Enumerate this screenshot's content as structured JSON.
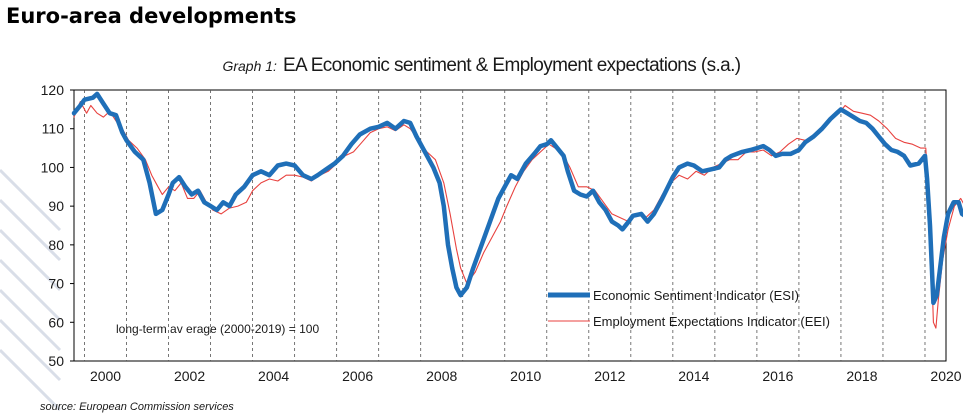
{
  "page": {
    "heading": "Euro-area developments"
  },
  "chart_data": {
    "type": "line",
    "title_prefix": "Graph 1:",
    "title": "EA Economic sentiment & Employment expectations (s.a.)",
    "ylim": [
      50,
      120
    ],
    "y_ticks": [
      50,
      60,
      70,
      80,
      90,
      100,
      110,
      120
    ],
    "x_ticks": [
      "2000",
      "2002",
      "2004",
      "2006",
      "2008",
      "2010",
      "2012",
      "2014",
      "2016",
      "2018",
      "2020"
    ],
    "xlim": [
      1999.75,
      2020.5
    ],
    "grid": "vertical dashed",
    "annotation": "long-term av erage (2000-2019) = 100",
    "source_label": "source:",
    "source_text": "European Commission services",
    "series": [
      {
        "name": "Economic Sentiment Indicator (ESI)",
        "color": "#1f6fb8",
        "style": "thick",
        "points": [
          [
            1999.75,
            114
          ],
          [
            1999.9,
            116
          ],
          [
            2000.0,
            117.5
          ],
          [
            2000.2,
            118
          ],
          [
            2000.3,
            119
          ],
          [
            2000.45,
            116.5
          ],
          [
            2000.6,
            114
          ],
          [
            2000.75,
            113.5
          ],
          [
            2000.9,
            109
          ],
          [
            2001.0,
            107
          ],
          [
            2001.2,
            104
          ],
          [
            2001.4,
            102
          ],
          [
            2001.55,
            96
          ],
          [
            2001.7,
            88
          ],
          [
            2001.85,
            89
          ],
          [
            2002.0,
            93
          ],
          [
            2002.1,
            96
          ],
          [
            2002.25,
            97.5
          ],
          [
            2002.4,
            95
          ],
          [
            2002.55,
            93
          ],
          [
            2002.7,
            94
          ],
          [
            2002.85,
            91
          ],
          [
            2003.0,
            90
          ],
          [
            2003.15,
            89
          ],
          [
            2003.3,
            91
          ],
          [
            2003.45,
            90
          ],
          [
            2003.6,
            93
          ],
          [
            2003.8,
            95
          ],
          [
            2004.0,
            98
          ],
          [
            2004.2,
            99
          ],
          [
            2004.4,
            98
          ],
          [
            2004.6,
            100.5
          ],
          [
            2004.8,
            101
          ],
          [
            2005.0,
            100.5
          ],
          [
            2005.2,
            98
          ],
          [
            2005.4,
            97
          ],
          [
            2005.55,
            98
          ],
          [
            2005.75,
            99.5
          ],
          [
            2005.95,
            101
          ],
          [
            2006.15,
            103
          ],
          [
            2006.35,
            106
          ],
          [
            2006.55,
            108.5
          ],
          [
            2006.8,
            110
          ],
          [
            2007.0,
            110.5
          ],
          [
            2007.2,
            111.5
          ],
          [
            2007.4,
            110
          ],
          [
            2007.6,
            112
          ],
          [
            2007.75,
            111.5
          ],
          [
            2007.9,
            108
          ],
          [
            2008.1,
            104
          ],
          [
            2008.3,
            100
          ],
          [
            2008.45,
            96
          ],
          [
            2008.55,
            90
          ],
          [
            2008.65,
            80
          ],
          [
            2008.75,
            74
          ],
          [
            2008.85,
            69
          ],
          [
            2008.95,
            67
          ],
          [
            2009.1,
            69
          ],
          [
            2009.25,
            74
          ],
          [
            2009.45,
            80
          ],
          [
            2009.65,
            86
          ],
          [
            2009.85,
            92
          ],
          [
            2010.0,
            95
          ],
          [
            2010.15,
            98
          ],
          [
            2010.3,
            97
          ],
          [
            2010.5,
            101
          ],
          [
            2010.7,
            103.5
          ],
          [
            2010.85,
            105.5
          ],
          [
            2011.0,
            106
          ],
          [
            2011.1,
            107
          ],
          [
            2011.25,
            105
          ],
          [
            2011.4,
            103
          ],
          [
            2011.5,
            99
          ],
          [
            2011.65,
            94
          ],
          [
            2011.8,
            93
          ],
          [
            2011.95,
            92.5
          ],
          [
            2012.1,
            94
          ],
          [
            2012.25,
            91
          ],
          [
            2012.4,
            89
          ],
          [
            2012.55,
            86
          ],
          [
            2012.7,
            85
          ],
          [
            2012.8,
            84
          ],
          [
            2012.95,
            86
          ],
          [
            2013.05,
            87.5
          ],
          [
            2013.25,
            88
          ],
          [
            2013.4,
            86
          ],
          [
            2013.55,
            88
          ],
          [
            2013.75,
            92
          ],
          [
            2014.0,
            97.5
          ],
          [
            2014.15,
            100
          ],
          [
            2014.35,
            101
          ],
          [
            2014.5,
            100.5
          ],
          [
            2014.7,
            99
          ],
          [
            2014.9,
            99.5
          ],
          [
            2015.1,
            100
          ],
          [
            2015.25,
            102
          ],
          [
            2015.4,
            103
          ],
          [
            2015.65,
            104
          ],
          [
            2015.85,
            104.5
          ],
          [
            2016.0,
            105
          ],
          [
            2016.15,
            105.5
          ],
          [
            2016.3,
            104.5
          ],
          [
            2016.45,
            103
          ],
          [
            2016.6,
            103.5
          ],
          [
            2016.8,
            103.5
          ],
          [
            2017.0,
            104.5
          ],
          [
            2017.15,
            106.5
          ],
          [
            2017.35,
            108
          ],
          [
            2017.55,
            110
          ],
          [
            2017.75,
            112.5
          ],
          [
            2017.9,
            114
          ],
          [
            2018.0,
            115
          ],
          [
            2018.15,
            114
          ],
          [
            2018.3,
            113
          ],
          [
            2018.45,
            112
          ],
          [
            2018.6,
            111.5
          ],
          [
            2018.75,
            110
          ],
          [
            2018.9,
            108
          ],
          [
            2019.05,
            106
          ],
          [
            2019.2,
            104.5
          ],
          [
            2019.35,
            104
          ],
          [
            2019.5,
            103
          ],
          [
            2019.65,
            100.5
          ],
          [
            2019.85,
            101
          ],
          [
            2020.0,
            103
          ],
          [
            2020.05,
            97
          ],
          [
            2020.12,
            85
          ],
          [
            2020.2,
            65
          ],
          [
            2020.28,
            67
          ],
          [
            2020.36,
            74
          ],
          [
            2020.45,
            82
          ],
          [
            2020.55,
            88
          ],
          [
            2020.68,
            91
          ],
          [
            2020.8,
            91
          ],
          [
            2020.88,
            88
          ],
          [
            2020.95,
            87.5
          ]
        ]
      },
      {
        "name": "Employment Expectations Indicator (EEI)",
        "color": "#e8423f",
        "style": "thin",
        "points": [
          [
            1999.75,
            113
          ],
          [
            1999.9,
            117
          ],
          [
            2000.05,
            114
          ],
          [
            2000.15,
            116
          ],
          [
            2000.3,
            114
          ],
          [
            2000.45,
            113
          ],
          [
            2000.6,
            114.5
          ],
          [
            2000.75,
            112
          ],
          [
            2000.9,
            110
          ],
          [
            2001.05,
            107
          ],
          [
            2001.25,
            105
          ],
          [
            2001.45,
            102
          ],
          [
            2001.6,
            98
          ],
          [
            2001.75,
            95
          ],
          [
            2001.85,
            93
          ],
          [
            2002.0,
            95
          ],
          [
            2002.15,
            94
          ],
          [
            2002.3,
            96
          ],
          [
            2002.45,
            92
          ],
          [
            2002.6,
            92
          ],
          [
            2002.75,
            94
          ],
          [
            2002.9,
            91
          ],
          [
            2003.05,
            89
          ],
          [
            2003.25,
            88
          ],
          [
            2003.45,
            89.5
          ],
          [
            2003.65,
            90
          ],
          [
            2003.85,
            91
          ],
          [
            2004.0,
            94
          ],
          [
            2004.2,
            96
          ],
          [
            2004.4,
            97
          ],
          [
            2004.6,
            96.5
          ],
          [
            2004.8,
            98
          ],
          [
            2005.0,
            98
          ],
          [
            2005.2,
            97.5
          ],
          [
            2005.4,
            96.5
          ],
          [
            2005.6,
            98
          ],
          [
            2005.8,
            99
          ],
          [
            2006.0,
            101
          ],
          [
            2006.2,
            103
          ],
          [
            2006.4,
            104
          ],
          [
            2006.6,
            106.5
          ],
          [
            2006.8,
            109
          ],
          [
            2007.0,
            110
          ],
          [
            2007.2,
            110.5
          ],
          [
            2007.4,
            109.5
          ],
          [
            2007.6,
            111
          ],
          [
            2007.75,
            110
          ],
          [
            2007.95,
            107
          ],
          [
            2008.15,
            104
          ],
          [
            2008.35,
            102
          ],
          [
            2008.55,
            96
          ],
          [
            2008.7,
            88
          ],
          [
            2008.85,
            79
          ],
          [
            2008.95,
            74
          ],
          [
            2009.1,
            70
          ],
          [
            2009.3,
            73
          ],
          [
            2009.5,
            78
          ],
          [
            2009.7,
            82
          ],
          [
            2009.9,
            86
          ],
          [
            2010.05,
            90
          ],
          [
            2010.25,
            95
          ],
          [
            2010.45,
            99
          ],
          [
            2010.65,
            102
          ],
          [
            2010.85,
            104
          ],
          [
            2011.05,
            106
          ],
          [
            2011.2,
            105
          ],
          [
            2011.4,
            103
          ],
          [
            2011.55,
            100
          ],
          [
            2011.75,
            95
          ],
          [
            2011.95,
            95
          ],
          [
            2012.15,
            94
          ],
          [
            2012.35,
            91
          ],
          [
            2012.55,
            88
          ],
          [
            2012.75,
            87
          ],
          [
            2012.95,
            86
          ],
          [
            2013.15,
            88
          ],
          [
            2013.35,
            87
          ],
          [
            2013.55,
            89
          ],
          [
            2013.75,
            93
          ],
          [
            2013.95,
            96
          ],
          [
            2014.15,
            98
          ],
          [
            2014.35,
            97
          ],
          [
            2014.55,
            99
          ],
          [
            2014.75,
            98
          ],
          [
            2014.95,
            100
          ],
          [
            2015.15,
            101
          ],
          [
            2015.35,
            102
          ],
          [
            2015.55,
            102
          ],
          [
            2015.75,
            104
          ],
          [
            2015.95,
            104
          ],
          [
            2016.15,
            104.5
          ],
          [
            2016.35,
            103
          ],
          [
            2016.55,
            104
          ],
          [
            2016.75,
            106
          ],
          [
            2016.95,
            107.5
          ],
          [
            2017.15,
            107
          ],
          [
            2017.35,
            108
          ],
          [
            2017.55,
            110
          ],
          [
            2017.75,
            112
          ],
          [
            2017.95,
            114
          ],
          [
            2018.1,
            116
          ],
          [
            2018.3,
            114.5
          ],
          [
            2018.5,
            114
          ],
          [
            2018.7,
            113.5
          ],
          [
            2018.9,
            112
          ],
          [
            2019.1,
            110
          ],
          [
            2019.3,
            107.5
          ],
          [
            2019.5,
            106.5
          ],
          [
            2019.7,
            106
          ],
          [
            2019.9,
            105
          ],
          [
            2020.02,
            105
          ],
          [
            2020.08,
            94
          ],
          [
            2020.14,
            80
          ],
          [
            2020.2,
            60
          ],
          [
            2020.26,
            58.5
          ],
          [
            2020.32,
            66
          ],
          [
            2020.42,
            76
          ],
          [
            2020.55,
            84
          ],
          [
            2020.7,
            90
          ],
          [
            2020.85,
            92
          ],
          [
            2020.95,
            90
          ]
        ]
      }
    ]
  }
}
